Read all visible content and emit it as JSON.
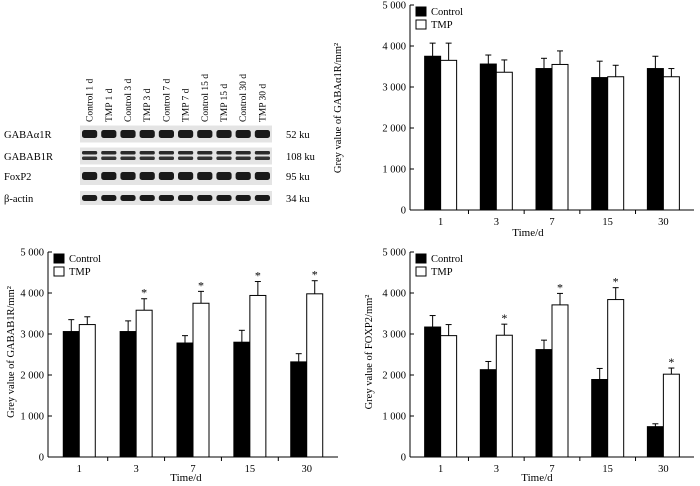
{
  "blot": {
    "lanes": [
      "Control 1 d",
      "TMP 1 d",
      "Control 3 d",
      "TMP 3 d",
      "Control 7 d",
      "TMP 7 d",
      "Control 15 d",
      "TMP 15 d",
      "Control 30 d",
      "TMP 30 d"
    ],
    "rows": [
      {
        "protein": "GABAα1R",
        "size": "52 ku"
      },
      {
        "protein": "GABAB1R",
        "size": "108 ku"
      },
      {
        "protein": "FoxP2",
        "size": "95 ku"
      },
      {
        "protein": "β-actin",
        "size": "34 ku"
      }
    ]
  },
  "chart_data": [
    {
      "type": "bar",
      "ylabel": "Grey value of GABAα1R/mm²",
      "xlabel": "Time/d",
      "categories": [
        "1",
        "3",
        "7",
        "15",
        "30"
      ],
      "ylim": [
        0,
        5000
      ],
      "yticks": [
        "0",
        "1 000",
        "2 000",
        "3 000",
        "4 000",
        "5 000"
      ],
      "legend_position": "top-left",
      "series": [
        {
          "name": "Control",
          "color": "#000000",
          "values": [
            3750,
            3560,
            3450,
            3230,
            3450
          ],
          "errors": [
            320,
            220,
            250,
            400,
            300
          ]
        },
        {
          "name": "TMP",
          "color": "#ffffff",
          "values": [
            3650,
            3360,
            3550,
            3250,
            3250
          ],
          "errors": [
            420,
            300,
            330,
            280,
            200
          ]
        }
      ],
      "significant": []
    },
    {
      "type": "bar",
      "ylabel": "Grey value of GABAB1R/mm²",
      "xlabel": "Time/d",
      "categories": [
        "1",
        "3",
        "7",
        "15",
        "30"
      ],
      "ylim": [
        0,
        5000
      ],
      "yticks": [
        "0",
        "1 000",
        "2 000",
        "3 000",
        "4 000",
        "5 000"
      ],
      "legend_position": "top-left",
      "series": [
        {
          "name": "Control",
          "color": "#000000",
          "values": [
            3060,
            3060,
            2780,
            2800,
            2320
          ],
          "errors": [
            290,
            260,
            180,
            290,
            200
          ]
        },
        {
          "name": "TMP",
          "color": "#ffffff",
          "values": [
            3230,
            3580,
            3750,
            3940,
            3980
          ],
          "errors": [
            190,
            280,
            290,
            340,
            320
          ]
        }
      ],
      "significant": [
        "",
        "*",
        "*",
        "*",
        "*"
      ]
    },
    {
      "type": "bar",
      "ylabel": "Grey value of FOXP2/mm²",
      "xlabel": "Time/d",
      "categories": [
        "1",
        "3",
        "7",
        "15",
        "30"
      ],
      "ylim": [
        0,
        5000
      ],
      "yticks": [
        "0",
        "1 000",
        "2 000",
        "3 000",
        "4 000",
        "5 000"
      ],
      "legend_position": "top-left",
      "series": [
        {
          "name": "Control",
          "color": "#000000",
          "values": [
            3170,
            2130,
            2620,
            1890,
            740
          ],
          "errors": [
            280,
            200,
            230,
            270,
            70
          ]
        },
        {
          "name": "TMP",
          "color": "#ffffff",
          "values": [
            2960,
            2970,
            3710,
            3840,
            2020
          ],
          "errors": [
            270,
            270,
            280,
            290,
            150
          ]
        }
      ],
      "significant": [
        "",
        "*",
        "*",
        "*",
        "*"
      ]
    }
  ]
}
